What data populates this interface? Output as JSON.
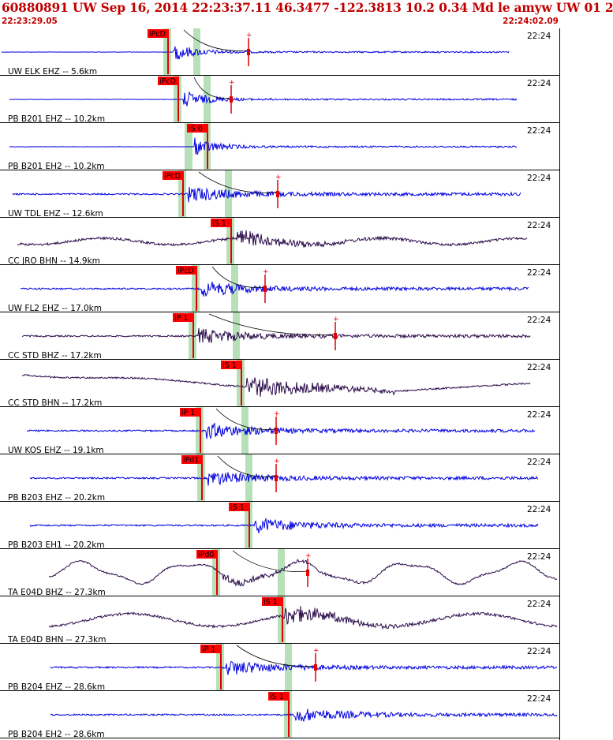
{
  "header": {
    "title": "60880891 UW Sep 16, 2014 22:23:37.11   46.3477 -122.3813 10.2 0.34 Md le amyw UW 01   2",
    "start_time": "22:23:29.05",
    "end_time": "22:24:02.09"
  },
  "colors": {
    "header_text": "#c00000",
    "trace_vertical": "#0000e0",
    "trace_horizontal": "#2a0a4a",
    "pick_box": "#ff0000",
    "pick_bar": "#e00000",
    "pick_window": "#b8e0b8",
    "theory_curve": "#000000"
  },
  "traces": [
    {
      "label": "UW ELK EHZ -- 5.6km",
      "time": "22:24",
      "component": "vertical",
      "pick": "iPcD",
      "wiggle": "white",
      "has_amp": true
    },
    {
      "label": "PB B201 EHZ -- 10.2km",
      "time": "22:24",
      "component": "vertical",
      "pick": "iPcD",
      "wiggle": "white",
      "has_amp": true
    },
    {
      "label": "PB B201 EH2 -- 10.2km",
      "time": "22:24",
      "component": "vertical",
      "pick": "iS 0",
      "wiggle": "white",
      "has_amp": false
    },
    {
      "label": "UW TDL EHZ -- 12.6km",
      "time": "22:24",
      "component": "vertical",
      "pick": "iPcD",
      "wiggle": "white",
      "has_amp": true
    },
    {
      "label": "CC JRO BHN -- 14.9km",
      "time": "22:24",
      "component": "horizontal",
      "pick": "iS 1",
      "wiggle": "slow",
      "has_amp": false
    },
    {
      "label": "UW FL2 EHZ -- 17.0km",
      "time": "22:24",
      "component": "vertical",
      "pick": "iPcD",
      "wiggle": "white",
      "has_amp": true
    },
    {
      "label": "CC STD BHZ -- 17.2km",
      "time": "22:24",
      "component": "horizontal",
      "pick": "iP 1",
      "wiggle": "white",
      "has_amp": true
    },
    {
      "label": "CC STD BHN -- 17.2km",
      "time": "22:24",
      "component": "horizontal",
      "pick": "iS 1",
      "wiggle": "drift",
      "has_amp": false
    },
    {
      "label": "UW KOS EHZ -- 19.1km",
      "time": "22:24",
      "component": "vertical",
      "pick": "iP 1",
      "wiggle": "white",
      "has_amp": true
    },
    {
      "label": "PB B203 EHZ -- 20.2km",
      "time": "22:24",
      "component": "vertical",
      "pick": "iPd1",
      "wiggle": "white",
      "has_amp": true
    },
    {
      "label": "PB B203 EH1 -- 20.2km",
      "time": "22:24",
      "component": "vertical",
      "pick": "iS 1",
      "wiggle": "white",
      "has_amp": false
    },
    {
      "label": "TA E04D BHZ -- 27.3km",
      "time": "22:24",
      "component": "horizontal",
      "pick": "iPd0",
      "wiggle": "swell",
      "has_amp": true
    },
    {
      "label": "TA E04D BHN -- 27.3km",
      "time": "22:24",
      "component": "horizontal",
      "pick": "iS 1",
      "wiggle": "swell2",
      "has_amp": false
    },
    {
      "label": "PB B204 EHZ -- 28.6km",
      "time": "22:24",
      "component": "vertical",
      "pick": "iP 1",
      "wiggle": "white",
      "has_amp": true
    },
    {
      "label": "PB B204 EH2 -- 28.6km",
      "time": "22:24",
      "component": "vertical",
      "pick": "iS 1",
      "wiggle": "white",
      "has_amp": false
    }
  ]
}
